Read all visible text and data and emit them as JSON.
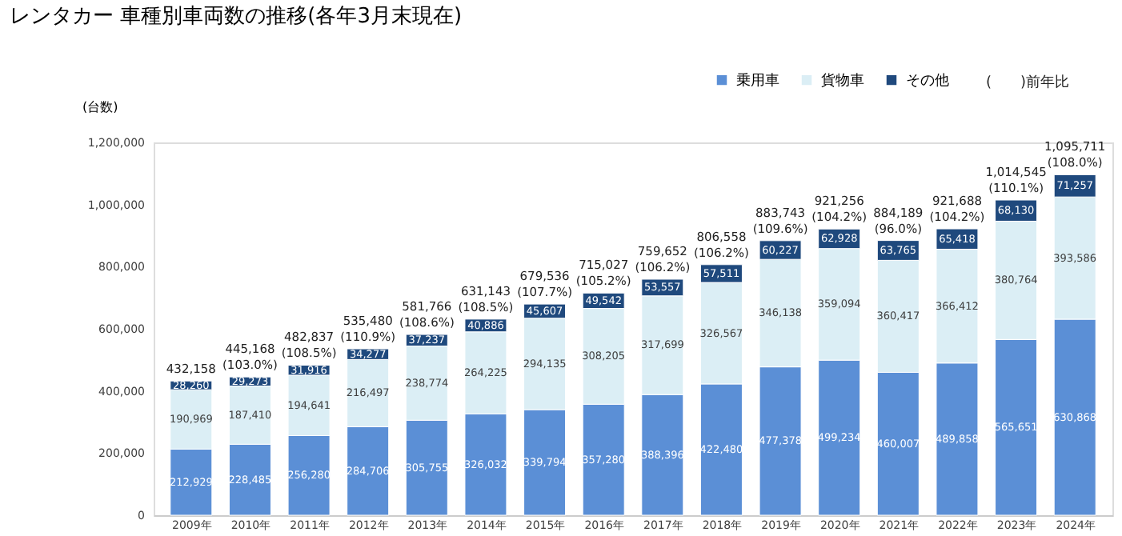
{
  "chart_data": {
    "type": "bar",
    "stacked": true,
    "title": "レンタカー 車種別車両数の推移(各年3月末現在)",
    "ylabel": "(台数)",
    "categories": [
      "2009年",
      "2010年",
      "2011年",
      "2012年",
      "2013年",
      "2014年",
      "2015年",
      "2016年",
      "2017年",
      "2018年",
      "2019年",
      "2020年",
      "2021年",
      "2022年",
      "2023年",
      "2024年"
    ],
    "series": [
      {
        "name": "乗用車",
        "color": "#5b8fd6",
        "values": [
          212929,
          228485,
          256280,
          284706,
          305755,
          326032,
          339794,
          357280,
          388396,
          422480,
          477378,
          499234,
          460007,
          489858,
          565651,
          630868
        ],
        "value_labels": [
          "212,929",
          "228,485",
          "256,280",
          "284,706",
          "305,755",
          "326,032",
          "339,794",
          "357,280",
          "388,396",
          "422,480",
          "477,378",
          "499,234",
          "460,007",
          "489,858",
          "565,651",
          "630,868"
        ]
      },
      {
        "name": "貨物車",
        "color": "#dbeef5",
        "values": [
          190969,
          187410,
          194641,
          216497,
          238774,
          264225,
          294135,
          308205,
          317699,
          326567,
          346138,
          359094,
          360417,
          366412,
          380764,
          393586
        ],
        "value_labels": [
          "190,969",
          "187,410",
          "194,641",
          "216,497",
          "238,774",
          "264,225",
          "294,135",
          "308,205",
          "317,699",
          "326,567",
          "346,138",
          "359,094",
          "360,417",
          "366,412",
          "380,764",
          "393,586"
        ]
      },
      {
        "name": "その他",
        "color": "#1f497d",
        "values": [
          28260,
          29273,
          31916,
          34277,
          37237,
          40886,
          45607,
          49542,
          53557,
          57511,
          60227,
          62928,
          63765,
          65418,
          68130,
          71257
        ],
        "value_labels": [
          "28,260",
          "29,273",
          "31,916",
          "34,277",
          "37,237",
          "40,886",
          "45,607",
          "49,542",
          "53,557",
          "57,511",
          "60,227",
          "62,928",
          "63,765",
          "65,418",
          "68,130",
          "71,257"
        ]
      }
    ],
    "totals": [
      "432,158",
      "445,168\n(103.0%)",
      "482,837\n(108.5%)",
      "535,480\n(110.9%)",
      "581,766\n(108.6%)",
      "631,143\n(108.5%)",
      "679,536\n(107.7%)",
      "715,027\n(105.2%)",
      "759,652\n(106.2%)",
      "806,558\n(106.2%)",
      "883,743\n(109.6%)",
      "921,256\n(104.2%)",
      "884,189\n(96.0%)",
      "921,688\n(104.2%)",
      "1,014,545\n(110.1%)",
      "1,095,711\n(108.0%)"
    ],
    "ylim": [
      0,
      1200000
    ],
    "yticks": [
      0,
      {
        "value": 200000,
        "label": "200,000"
      },
      {
        "value": 400000,
        "label": "400,000"
      },
      {
        "value": 600000,
        "label": "600,000"
      },
      {
        "value": 800000,
        "label": "800,000"
      },
      {
        "value": 1000000,
        "label": "1,000,000"
      },
      {
        "value": 1200000,
        "label": "1,200,000"
      }
    ],
    "grid": false,
    "legend": "top right",
    "data_labels": true,
    "annotations": [
      "(　　)前年比"
    ]
  }
}
